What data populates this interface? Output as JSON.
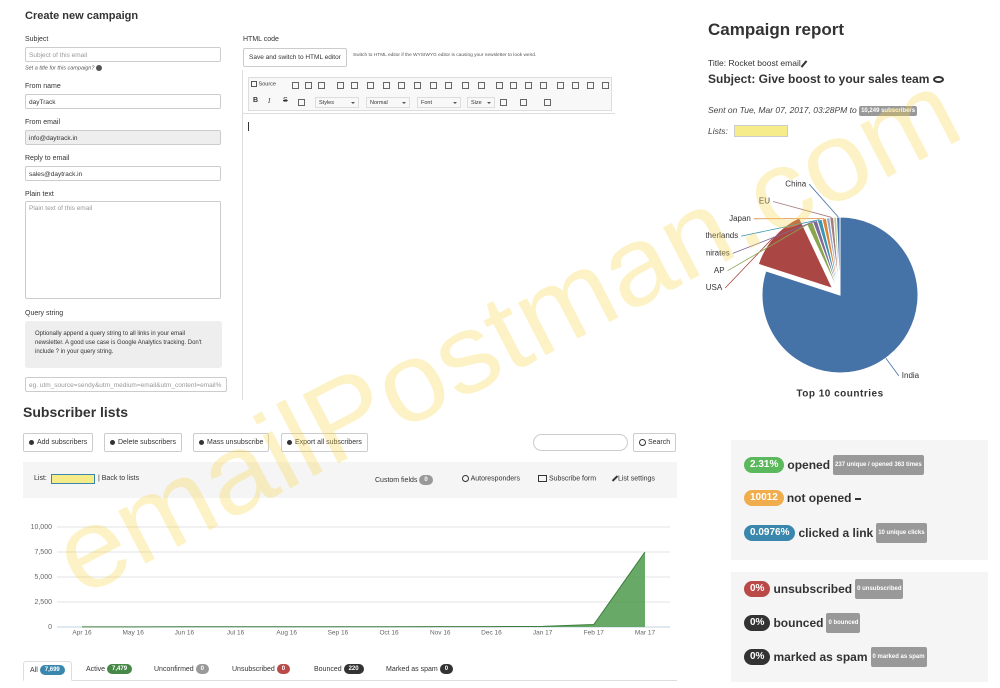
{
  "watermark": "emailPostman.com",
  "campaign_form": {
    "title": "Create new campaign",
    "fields": [
      {
        "label": "Subject",
        "placeholder": "Subject of this email",
        "help": "Set a title for this campaign?"
      },
      {
        "label": "From name",
        "value": "dayTrack"
      },
      {
        "label": "From email",
        "value": "info@daytrack.in"
      },
      {
        "label": "Reply to email",
        "value": "sales@daytrack.in"
      },
      {
        "label": "Plain text",
        "placeholder": "Plain text of this email"
      },
      {
        "label": "Query string",
        "note": "Optionally append a query string to all links in your email newsletter. A good use case is Google Analytics tracking. Don't include ? in your query string.",
        "placeholder": "eg. utm_source=sendy&utm_medium=email&utm_content=email%"
      }
    ]
  },
  "editor": {
    "label": "HTML code",
    "switch_button": "Save and switch to HTML editor",
    "switch_note": "Switch to HTML editor if the WYSIWYG editor is causing your newsletter to look weird.",
    "toolbar": {
      "source": "Source",
      "bold": "B",
      "italic": "I",
      "strike": "S",
      "styles": "Styles",
      "format": "Normal",
      "font": "Font",
      "size": "Size"
    }
  },
  "report": {
    "title": "Campaign report",
    "campaign_title": "Title: Rocket boost email",
    "subject": "Subject: Give boost to your sales team",
    "sent": "Sent on Tue, Mar 07, 2017, 03:28PM to",
    "recipients": "10,249 subscribers",
    "lists": "Lists:"
  },
  "subscriber_lists": {
    "title": "Subscriber lists",
    "buttons": [
      "Add subscribers",
      "Delete subscribers",
      "Mass unsubscribe",
      "Export all subscribers"
    ],
    "search": "Search",
    "list_label": "List:",
    "back": "| Back to lists",
    "custom_fields": "Custom fields",
    "custom_fields_count": 0,
    "autoresponders": "Autoresponders",
    "subscribe_form": "Subscribe form",
    "list_settings": "List settings",
    "tabs": [
      {
        "label": "All",
        "count": "7,699"
      },
      {
        "label": "Active",
        "count": "7,479"
      },
      {
        "label": "Unconfirmed",
        "count": "0"
      },
      {
        "label": "Unsubscribed",
        "count": "0"
      },
      {
        "label": "Bounced",
        "count": "220"
      },
      {
        "label": "Marked as spam",
        "count": "0"
      }
    ]
  },
  "stats": [
    {
      "value": "2.31%",
      "label": "opened",
      "detail": "237 unique / opened 363 times"
    },
    {
      "value": "10012",
      "label": "not opened"
    },
    {
      "value": "0.0976%",
      "label": "clicked a link",
      "detail": "10 unique clicks"
    },
    {
      "value": "0%",
      "label": "unsubscribed",
      "detail": "0 unsubscribed"
    },
    {
      "value": "0%",
      "label": "bounced",
      "detail": "0 bounced"
    },
    {
      "value": "0%",
      "label": "marked as spam",
      "detail": "0 marked as spam"
    }
  ],
  "chart_data": [
    {
      "type": "pie",
      "title": "Top 10 countries",
      "categories": [
        "India",
        "USA",
        "AP",
        "Emirates",
        "Netherlands",
        "Japan",
        null,
        "EU",
        null,
        "China"
      ],
      "values": [
        80,
        13,
        1.3,
        1,
        1,
        0.9,
        0.7,
        0.8,
        0.6,
        0.7
      ],
      "colors": [
        "#4572a7",
        "#aa4643",
        "#89a54e",
        "#80699b",
        "#3d96ae",
        "#db843d",
        "#92a8cd",
        "#a47d7c",
        "#b5ca92",
        "#4572a7"
      ],
      "sliced": [
        false,
        true,
        false,
        false,
        false,
        false,
        false,
        false,
        false,
        false
      ]
    },
    {
      "type": "area",
      "categories": [
        "Apr 16",
        "May 16",
        "Jun 16",
        "Jul 16",
        "Aug 16",
        "Sep 16",
        "Oct 16",
        "Nov 16",
        "Dec 16",
        "Jan 17",
        "Feb 17",
        "Mar 17"
      ],
      "values": [
        10,
        15,
        20,
        20,
        25,
        30,
        30,
        35,
        40,
        60,
        250,
        7500
      ],
      "color": "#4d9a4d",
      "ylim": [
        0,
        10000
      ],
      "yticks": [
        0,
        {
          "value": 2500,
          "label": "2,500"
        },
        {
          "value": 5000,
          "label": "5,000"
        },
        {
          "value": 7500,
          "label": "7,500"
        },
        {
          "value": 10000,
          "label": "10,000"
        }
      ],
      "grid": true
    }
  ]
}
